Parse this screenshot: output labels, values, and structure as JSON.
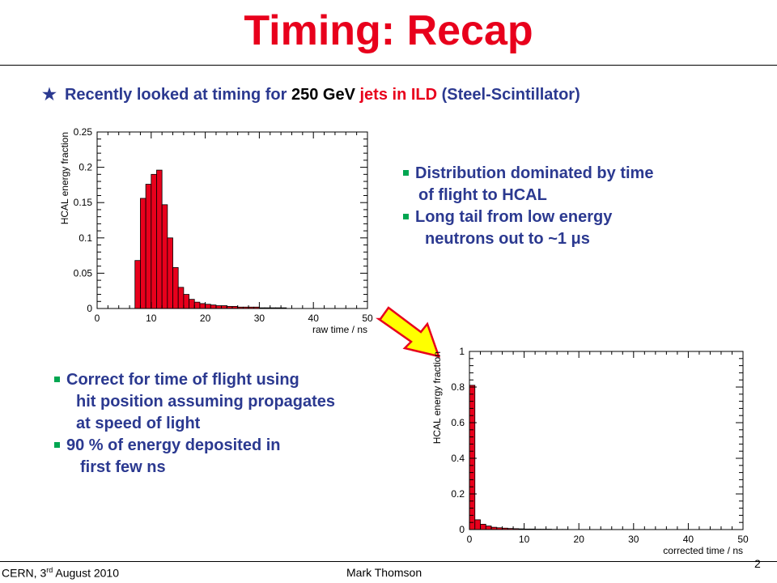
{
  "header": {
    "title": "Timing: Recap",
    "title_color": "#e8001c"
  },
  "intro": {
    "parts": [
      {
        "text": "Recently looked at timing for ",
        "color": "blue"
      },
      {
        "text": "250 GeV",
        "color": "black"
      },
      {
        "text": " jets in ILD",
        "color": "red"
      },
      {
        "text": " (Steel-Scintillator)",
        "color": "blue"
      }
    ]
  },
  "notes_right": [
    {
      "line1": "Distribution dominated by time",
      "line2": "of flight to HCAL"
    },
    {
      "line1": "Long tail from low energy",
      "line2": "neutrons out to ~1 μs"
    }
  ],
  "notes_left": [
    {
      "line1": "Correct for time of flight using",
      "line2": "hit position assuming propagates",
      "line3": "at speed of light"
    },
    {
      "line1": "90 % of energy deposited in",
      "line2": "first few ns"
    }
  ],
  "footer": {
    "venue": "CERN, 3",
    "venue_sup": "rd",
    "venue_rest": " August 2010",
    "author": "Mark Thomson",
    "page": "2"
  },
  "arrow": {
    "fill": "#ffff00",
    "stroke": "#e8001c"
  },
  "chart_data": [
    {
      "type": "bar",
      "xlabel": "raw time / ns",
      "ylabel": "HCAL energy fraction",
      "xlim": [
        0,
        50
      ],
      "ylim": [
        0,
        0.25
      ],
      "xticks": [
        0,
        10,
        20,
        30,
        40,
        50
      ],
      "yticks": [
        0,
        0.05,
        0.1,
        0.15,
        0.2,
        0.25
      ],
      "ytick_labels": [
        "0",
        "0.05",
        "0.1",
        "0.15",
        "0.2",
        "0.25"
      ],
      "bin_width": 1,
      "bin_start": 7,
      "values": [
        0.068,
        0.156,
        0.176,
        0.19,
        0.196,
        0.147,
        0.1,
        0.058,
        0.03,
        0.02,
        0.013,
        0.009,
        0.007,
        0.006,
        0.005,
        0.004,
        0.004,
        0.003,
        0.003,
        0.002,
        0.002,
        0.002,
        0.002,
        0.001,
        0.001,
        0.001,
        0.001,
        0.001
      ],
      "color": "#e8001c"
    },
    {
      "type": "bar",
      "xlabel": "corrected time / ns",
      "ylabel": "HCAL energy fraction",
      "xlim": [
        0,
        50
      ],
      "ylim": [
        0,
        1
      ],
      "xticks": [
        0,
        10,
        20,
        30,
        40,
        50
      ],
      "yticks": [
        0,
        0.2,
        0.4,
        0.6,
        0.8,
        1
      ],
      "ytick_labels": [
        "0",
        "0.2",
        "0.4",
        "0.6",
        "0.8",
        "1"
      ],
      "bin_width": 1,
      "bin_start": 0,
      "values": [
        0.81,
        0.055,
        0.03,
        0.02,
        0.013,
        0.01,
        0.008,
        0.006,
        0.005,
        0.004,
        0.003,
        0.003,
        0.002,
        0.002,
        0.002,
        0.001,
        0.001,
        0.001
      ],
      "color": "#e8001c"
    }
  ]
}
